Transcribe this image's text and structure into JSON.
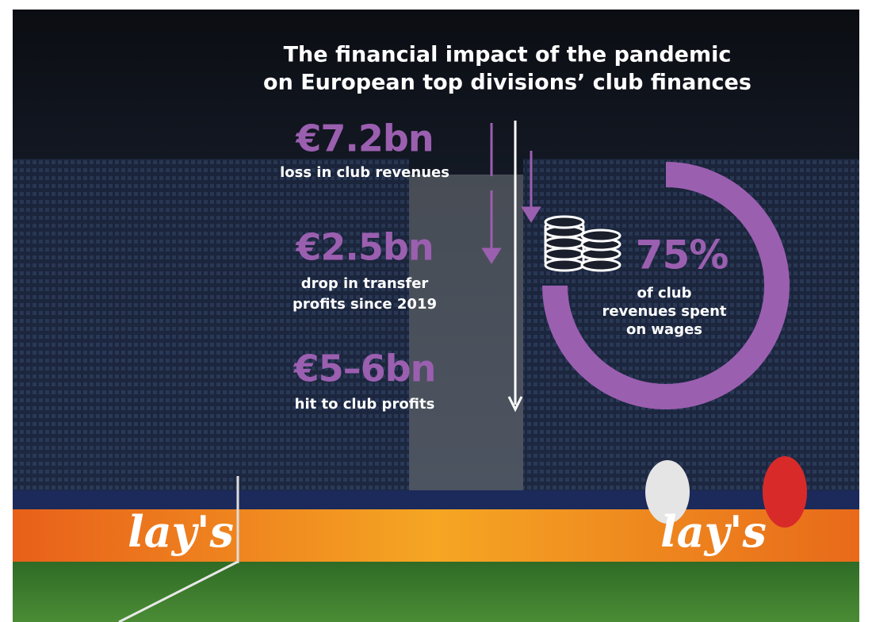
{
  "title_lines": [
    "The financial impact of the pandemic",
    "on European top divisions’ club finances"
  ],
  "stats": [
    {
      "figure": "€7.2bn",
      "caption_lines": [
        "loss in club revenues"
      ]
    },
    {
      "figure": "€2.5bn",
      "caption_lines": [
        "drop in transfer",
        "profits since 2019"
      ]
    },
    {
      "figure": "€5–6bn",
      "caption_lines": [
        "hit to club profits"
      ]
    }
  ],
  "wages": {
    "value": 75,
    "label": "75%",
    "caption_lines": [
      "of club",
      "revenues spent",
      "on wages"
    ]
  },
  "ad_board": [
    "lay's",
    "lay's"
  ]
}
